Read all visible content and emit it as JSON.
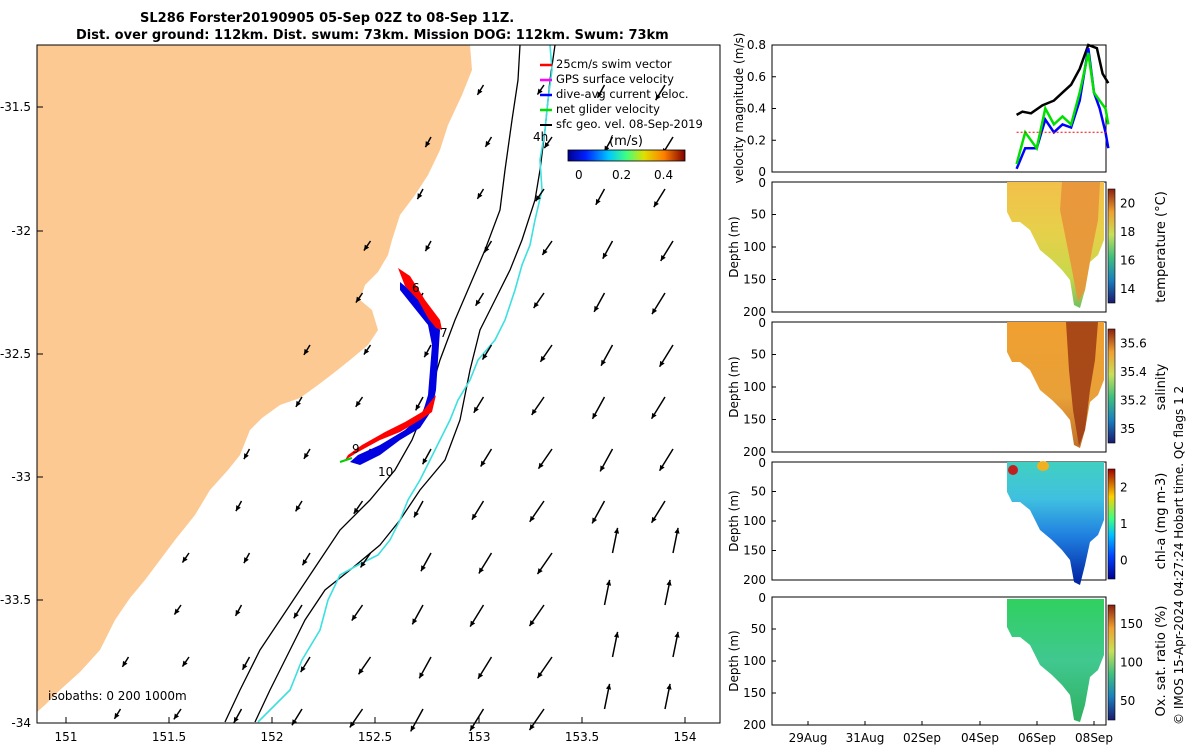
{
  "title_line1": "SL286 Forster20190905 05-Sep 02Z to 08-Sep 11Z.",
  "title_line2": "Dist. over ground: 112km. Dist. swum: 73km. Mission DOG: 112km. Swum: 73km",
  "credit": "© IMOS 15-Apr-2024 04:27:24 Hobart time. QC flags 1  2",
  "map": {
    "xticks": [
      "151",
      "151.5",
      "152",
      "152.5",
      "153",
      "153.5",
      "154"
    ],
    "yticks": [
      "-31.5",
      "-32",
      "-32.5",
      "-33",
      "-33.5",
      "-34"
    ],
    "legend": [
      {
        "label": "25cm/s swim vector",
        "color": "#ff0000"
      },
      {
        "label": "GPS surface velocity",
        "color": "#ff00ff"
      },
      {
        "label": "dive-avg current veloc.",
        "color": "#0000ff"
      },
      {
        "label": "net glider velocity",
        "color": "#00e000"
      },
      {
        "label": "sfc geo. vel. 08-Sep-2019",
        "color": "#000000"
      }
    ],
    "colorbar_title": "(m/s)",
    "colorbar_ticks": [
      "0",
      "0.2",
      "0.4"
    ],
    "isobaths_label": "isobaths: 0  200  1000m",
    "marker_4h": "4h",
    "day_markers": [
      "6",
      "7",
      "9",
      "10"
    ],
    "land_color": "#fcc993"
  },
  "chart_data": [
    {
      "type": "line",
      "title": "",
      "ylabel": "velocity magnitude (m/s)",
      "ylim": [
        0,
        0.8
      ],
      "yticks": [
        "0",
        "0.2",
        "0.4",
        "0.6",
        "0.8"
      ],
      "xticks": [
        "29Aug",
        "31Aug",
        "02Sep",
        "04Sep",
        "06Sep",
        "08Sep"
      ],
      "series": [
        {
          "color": "#000000",
          "x": [
            5.3,
            5.5,
            5.8,
            6.2,
            6.6,
            6.9,
            7.2,
            7.5,
            7.8,
            8.1,
            8.3,
            8.5
          ],
          "values": [
            0.36,
            0.38,
            0.37,
            0.42,
            0.45,
            0.5,
            0.55,
            0.65,
            0.8,
            0.78,
            0.62,
            0.56
          ]
        },
        {
          "color": "#0000ff",
          "x": [
            5.3,
            5.6,
            6.0,
            6.3,
            6.6,
            6.9,
            7.2,
            7.5,
            7.8,
            8.0,
            8.2,
            8.4,
            8.5
          ],
          "values": [
            0.02,
            0.15,
            0.15,
            0.33,
            0.25,
            0.3,
            0.28,
            0.45,
            0.78,
            0.5,
            0.4,
            0.25,
            0.15
          ]
        },
        {
          "color": "#00e000",
          "x": [
            5.3,
            5.6,
            6.0,
            6.3,
            6.6,
            6.9,
            7.2,
            7.5,
            7.8,
            8.0,
            8.2,
            8.4,
            8.5
          ],
          "values": [
            0.05,
            0.25,
            0.15,
            0.4,
            0.3,
            0.35,
            0.3,
            0.5,
            0.75,
            0.5,
            0.45,
            0.4,
            0.3
          ]
        },
        {
          "color": "#ff0000",
          "x": [
            5.3,
            8.5
          ],
          "values": [
            0.25,
            0.25
          ]
        }
      ]
    },
    {
      "type": "heatmap",
      "ylabel": "Depth (m)",
      "colorbar_label": "temperature (°C)",
      "colorbar_ticks": [
        "14",
        "16",
        "18",
        "20"
      ],
      "yticks": [
        "50",
        "100",
        "150",
        "200"
      ],
      "yticks_top": "0",
      "xticks": [
        "29Aug",
        "31Aug",
        "02Sep",
        "04Sep",
        "06Sep",
        "08Sep"
      ]
    },
    {
      "type": "heatmap",
      "ylabel": "Depth (m)",
      "colorbar_label": "salinity",
      "colorbar_ticks": [
        "35",
        "35.2",
        "35.4",
        "35.6"
      ],
      "yticks": [
        "50",
        "100",
        "150",
        "200"
      ],
      "yticks_top": "0",
      "xticks": [
        "29Aug",
        "31Aug",
        "02Sep",
        "04Sep",
        "06Sep",
        "08Sep"
      ]
    },
    {
      "type": "heatmap",
      "ylabel": "Depth (m)",
      "colorbar_label": "chl-a (mg m-3)",
      "colorbar_ticks": [
        "0",
        "1",
        "2"
      ],
      "yticks": [
        "50",
        "100",
        "150",
        "200"
      ],
      "yticks_top": "0",
      "xticks": [
        "29Aug",
        "31Aug",
        "02Sep",
        "04Sep",
        "06Sep",
        "08Sep"
      ]
    },
    {
      "type": "heatmap",
      "ylabel": "Depth (m)",
      "colorbar_label": "Ox. sat. ratio (%)",
      "colorbar_ticks": [
        "50",
        "100",
        "150"
      ],
      "yticks": [
        "50",
        "100",
        "150",
        "200"
      ],
      "yticks_top": "0",
      "xticks": [
        "29Aug",
        "31Aug",
        "02Sep",
        "04Sep",
        "06Sep",
        "08Sep"
      ]
    }
  ]
}
